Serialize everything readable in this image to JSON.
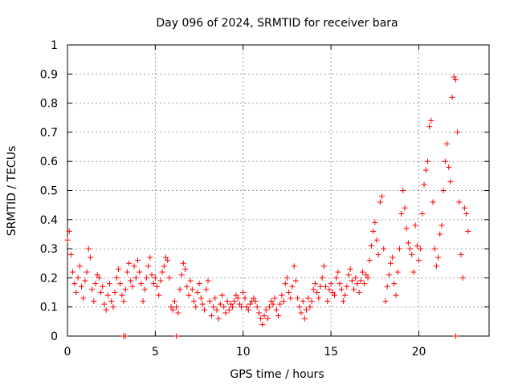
{
  "chart_data": {
    "type": "scatter",
    "title": "Day 096 of 2024, SRMTID for receiver bara",
    "xlabel": "GPS time / hours",
    "ylabel": "SRMTID / TECUs",
    "xlim": [
      0,
      24
    ],
    "ylim": [
      0,
      1
    ],
    "xticks": [
      0,
      5,
      10,
      15,
      20
    ],
    "xtick_labels": [
      "0",
      "5",
      "10",
      "15",
      "20"
    ],
    "yticks": [
      0,
      0.1,
      0.2,
      0.3,
      0.4,
      0.5,
      0.6,
      0.7,
      0.8,
      0.9,
      1
    ],
    "ytick_labels": [
      "0",
      "0.1",
      "0.2",
      "0.3",
      "0.4",
      "0.5",
      "0.6",
      "0.7",
      "0.8",
      "0.9",
      "1"
    ],
    "grid": true,
    "marker": "+",
    "color": "#ff0000",
    "series": [
      {
        "name": "SRMTID",
        "x": [
          0.0,
          0.1,
          0.2,
          0.3,
          0.4,
          0.5,
          0.6,
          0.7,
          0.8,
          0.9,
          1.0,
          1.1,
          1.2,
          1.3,
          1.4,
          1.5,
          1.6,
          1.7,
          1.8,
          1.9,
          2.0,
          2.1,
          2.2,
          2.3,
          2.4,
          2.5,
          2.6,
          2.7,
          2.8,
          2.9,
          3.0,
          3.1,
          3.2,
          3.3,
          3.4,
          3.5,
          3.6,
          3.7,
          3.8,
          3.9,
          4.0,
          4.1,
          4.2,
          4.3,
          4.4,
          4.5,
          4.6,
          4.7,
          4.8,
          4.9,
          5.0,
          5.1,
          5.2,
          5.3,
          5.4,
          5.5,
          5.6,
          5.7,
          5.8,
          5.9,
          6.0,
          6.1,
          6.2,
          6.3,
          6.4,
          6.5,
          6.6,
          6.7,
          6.8,
          6.9,
          7.0,
          7.1,
          7.2,
          7.3,
          7.4,
          7.5,
          7.6,
          7.7,
          7.8,
          7.9,
          8.0,
          8.1,
          8.2,
          8.3,
          8.4,
          8.5,
          8.6,
          8.7,
          8.8,
          8.9,
          9.0,
          9.1,
          9.2,
          9.3,
          9.4,
          9.5,
          9.6,
          9.7,
          9.8,
          9.9,
          10.0,
          10.1,
          10.2,
          10.3,
          10.4,
          10.5,
          10.6,
          10.7,
          10.8,
          10.9,
          11.0,
          11.1,
          11.2,
          11.3,
          11.4,
          11.5,
          11.6,
          11.7,
          11.8,
          11.9,
          12.0,
          12.1,
          12.2,
          12.3,
          12.4,
          12.5,
          12.6,
          12.7,
          12.8,
          12.9,
          13.0,
          13.1,
          13.2,
          13.3,
          13.4,
          13.5,
          13.6,
          13.7,
          13.8,
          13.9,
          14.0,
          14.1,
          14.2,
          14.3,
          14.4,
          14.5,
          14.6,
          14.7,
          14.8,
          14.9,
          15.0,
          15.1,
          15.2,
          15.3,
          15.4,
          15.5,
          15.6,
          15.7,
          15.8,
          15.9,
          16.0,
          16.1,
          16.2,
          16.3,
          16.4,
          16.5,
          16.6,
          16.7,
          16.8,
          16.9,
          17.0,
          17.1,
          17.2,
          17.3,
          17.4,
          17.5,
          17.6,
          17.7,
          17.8,
          17.9,
          18.0,
          18.1,
          18.2,
          18.3,
          18.4,
          18.5,
          18.6,
          18.7,
          18.8,
          18.9,
          19.0,
          19.1,
          19.2,
          19.3,
          19.4,
          19.5,
          19.6,
          19.7,
          19.8,
          19.9,
          20.0,
          20.1,
          20.2,
          20.3,
          20.4,
          20.5,
          20.6,
          20.7,
          20.8,
          20.9,
          21.0,
          21.1,
          21.2,
          21.3,
          21.4,
          21.5,
          21.6,
          21.7,
          21.8,
          21.9,
          22.0,
          22.1,
          22.2,
          22.3,
          22.4,
          22.5,
          22.6,
          22.7,
          22.8,
          3.2,
          3.3,
          6.2,
          22.1
        ],
        "y": [
          0.33,
          0.36,
          0.28,
          0.22,
          0.18,
          0.15,
          0.2,
          0.24,
          0.17,
          0.13,
          0.19,
          0.22,
          0.3,
          0.27,
          0.16,
          0.12,
          0.18,
          0.21,
          0.2,
          0.15,
          0.17,
          0.11,
          0.09,
          0.14,
          0.18,
          0.12,
          0.1,
          0.15,
          0.2,
          0.23,
          0.18,
          0.14,
          0.12,
          0.16,
          0.22,
          0.25,
          0.19,
          0.17,
          0.24,
          0.2,
          0.26,
          0.22,
          0.18,
          0.12,
          0.16,
          0.2,
          0.24,
          0.27,
          0.21,
          0.18,
          0.2,
          0.17,
          0.14,
          0.19,
          0.22,
          0.24,
          0.27,
          0.26,
          0.2,
          0.1,
          0.09,
          0.12,
          0.1,
          0.08,
          0.16,
          0.21,
          0.25,
          0.23,
          0.17,
          0.14,
          0.19,
          0.16,
          0.12,
          0.1,
          0.15,
          0.18,
          0.13,
          0.11,
          0.09,
          0.16,
          0.19,
          0.12,
          0.07,
          0.1,
          0.13,
          0.09,
          0.06,
          0.11,
          0.14,
          0.1,
          0.08,
          0.12,
          0.09,
          0.11,
          0.1,
          0.12,
          0.14,
          0.13,
          0.11,
          0.1,
          0.15,
          0.13,
          0.1,
          0.09,
          0.11,
          0.12,
          0.13,
          0.12,
          0.1,
          0.08,
          0.06,
          0.04,
          0.07,
          0.09,
          0.06,
          0.1,
          0.12,
          0.11,
          0.13,
          0.09,
          0.07,
          0.11,
          0.14,
          0.12,
          0.18,
          0.2,
          0.15,
          0.13,
          0.17,
          0.24,
          0.19,
          0.13,
          0.1,
          0.08,
          0.12,
          0.06,
          0.09,
          0.13,
          0.1,
          0.12,
          0.16,
          0.18,
          0.15,
          0.13,
          0.17,
          0.2,
          0.24,
          0.17,
          0.12,
          0.16,
          0.18,
          0.15,
          0.14,
          0.2,
          0.22,
          0.18,
          0.16,
          0.12,
          0.14,
          0.17,
          0.21,
          0.23,
          0.19,
          0.16,
          0.2,
          0.18,
          0.15,
          0.19,
          0.22,
          0.18,
          0.21,
          0.2,
          0.26,
          0.31,
          0.36,
          0.39,
          0.33,
          0.28,
          0.46,
          0.48,
          0.3,
          0.12,
          0.17,
          0.21,
          0.25,
          0.27,
          0.18,
          0.14,
          0.22,
          0.3,
          0.42,
          0.5,
          0.44,
          0.37,
          0.32,
          0.3,
          0.28,
          0.22,
          0.38,
          0.31,
          0.26,
          0.3,
          0.42,
          0.52,
          0.57,
          0.6,
          0.72,
          0.74,
          0.46,
          0.3,
          0.24,
          0.27,
          0.35,
          0.38,
          0.5,
          0.6,
          0.66,
          0.58,
          0.53,
          0.82,
          0.89,
          0.88,
          0.7,
          0.46,
          0.28,
          0.2,
          0.44,
          0.42,
          0.36,
          0.0,
          0.0,
          0.0,
          0.0
        ]
      }
    ]
  }
}
